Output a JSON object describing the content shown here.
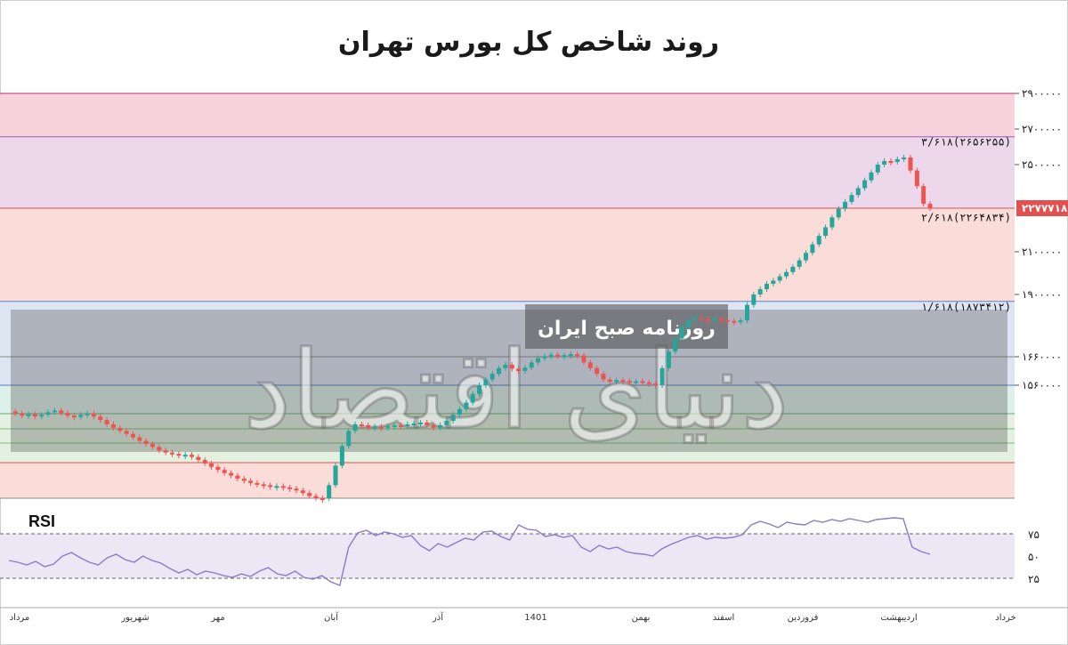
{
  "title": "روند شاخص کل بورس تهران",
  "watermark": {
    "large": "دنیای اقتصاد",
    "stamp": "روزنامه صبح ایران"
  },
  "colors": {
    "up": "#26a69a",
    "down": "#ef5350",
    "rsi": "#8d7ac9"
  },
  "chart_data": [
    {
      "type": "candlestick",
      "y_ticks": [
        {
          "value": 2900000,
          "label": "۲۹۰۰۰۰۰"
        },
        {
          "value": 2700000,
          "label": "۲۷۰۰۰۰۰"
        },
        {
          "value": 2500000,
          "label": "۲۵۰۰۰۰۰"
        },
        {
          "value": 2100000,
          "label": "۲۱۰۰۰۰۰"
        },
        {
          "value": 1900000,
          "label": "۱۹۰۰۰۰۰"
        },
        {
          "value": 1660000,
          "label": "۱۶۶۰۰۰۰"
        },
        {
          "value": 1560000,
          "label": "۱۵۶۰۰۰۰"
        }
      ],
      "current_price": {
        "value": 2277718,
        "label": "۲۲۷۷۷۱۸"
      },
      "fib_levels": [
        {
          "label": "۳/۶۱۸(۲۶۵۶۲۵۵)",
          "value": 2656255
        },
        {
          "label": "۲/۶۱۸(۲۲۶۴۸۳۴)",
          "value": 2264834
        },
        {
          "label": "۱/۶۱۸(۱۸۷۳۴۱۲)",
          "value": 1873412
        }
      ],
      "x_labels": [
        "مرداد",
        "شهریور",
        "مهر",
        "آبان",
        "آذر",
        "1401",
        "بهمن",
        "اسفند",
        "فروردین",
        "اردیبهشت",
        "خرداد"
      ],
      "close_series": [
        1500000,
        1495000,
        1490000,
        1493000,
        1488000,
        1492000,
        1498000,
        1502000,
        1496000,
        1490000,
        1487000,
        1492000,
        1495000,
        1488000,
        1480000,
        1470000,
        1462000,
        1455000,
        1448000,
        1440000,
        1432000,
        1425000,
        1418000,
        1410000,
        1405000,
        1402000,
        1398000,
        1400000,
        1395000,
        1388000,
        1380000,
        1372000,
        1365000,
        1358000,
        1352000,
        1345000,
        1340000,
        1335000,
        1332000,
        1330000,
        1326000,
        1328000,
        1325000,
        1322000,
        1318000,
        1312000,
        1305000,
        1300000,
        1296000,
        1330000,
        1375000,
        1420000,
        1455000,
        1470000,
        1468000,
        1462000,
        1465000,
        1463000,
        1466000,
        1468000,
        1466000,
        1470000,
        1472000,
        1474000,
        1468000,
        1462000,
        1468000,
        1478000,
        1492000,
        1505000,
        1520000,
        1540000,
        1560000,
        1580000,
        1600000,
        1620000,
        1632000,
        1618000,
        1610000,
        1622000,
        1640000,
        1655000,
        1662000,
        1668000,
        1662000,
        1666000,
        1670000,
        1665000,
        1640000,
        1620000,
        1600000,
        1580000,
        1572000,
        1578000,
        1575000,
        1572000,
        1574000,
        1570000,
        1566000,
        1560000,
        1620000,
        1680000,
        1730000,
        1775000,
        1800000,
        1810000,
        1805000,
        1800000,
        1806000,
        1802000,
        1798000,
        1795000,
        1800000,
        1860000,
        1900000,
        1925000,
        1950000,
        1965000,
        1985000,
        2005000,
        2030000,
        2060000,
        2095000,
        2130000,
        2165000,
        2200000,
        2240000,
        2275000,
        2310000,
        2345000,
        2380000,
        2420000,
        2460000,
        2500000,
        2520000,
        2515000,
        2530000,
        2540000,
        2470000,
        2390000,
        2300000,
        2277718
      ]
    },
    {
      "type": "line",
      "name": "RSI",
      "y_ticks": [
        {
          "value": 75,
          "label": "۷۵"
        },
        {
          "value": 50,
          "label": "۵۰"
        },
        {
          "value": 25,
          "label": "۲۵"
        }
      ],
      "ylim": [
        10,
        90
      ],
      "values": [
        45,
        43,
        40,
        44,
        38,
        41,
        50,
        54,
        48,
        43,
        40,
        48,
        52,
        46,
        43,
        50,
        45,
        42,
        36,
        31,
        35,
        29,
        33,
        31,
        28,
        26,
        30,
        27,
        33,
        37,
        30,
        28,
        33,
        26,
        24,
        28,
        21,
        17,
        60,
        76,
        79,
        73,
        77,
        75,
        71,
        73,
        62,
        56,
        64,
        60,
        65,
        70,
        68,
        77,
        78,
        72,
        68,
        85,
        80,
        79,
        72,
        74,
        71,
        73,
        60,
        55,
        62,
        58,
        60,
        55,
        53,
        52,
        50,
        58,
        63,
        67,
        71,
        73,
        69,
        71,
        70,
        71,
        74,
        85,
        89,
        86,
        82,
        88,
        86,
        85,
        90,
        88,
        91,
        89,
        92,
        90,
        88,
        91,
        92,
        93,
        92,
        60,
        55,
        52
      ]
    }
  ]
}
